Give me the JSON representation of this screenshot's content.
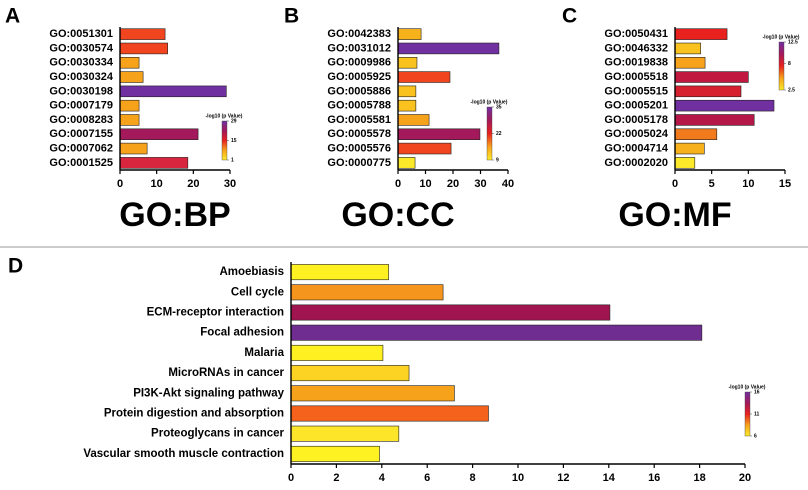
{
  "chart_data": [
    {
      "type": "barh",
      "label": "A",
      "title": "GO:BP",
      "categories": [
        "GO:0051301",
        "GO:0030574",
        "GO:0030334",
        "GO:0030324",
        "GO:0030198",
        "GO:0007179",
        "GO:0008283",
        "GO:0007155",
        "GO:0007062",
        "GO:0001525"
      ],
      "values": [
        12.3,
        13,
        5.2,
        6.3,
        29,
        5.2,
        5.2,
        21.3,
        7.4,
        18.5
      ],
      "colors": [
        "#f0451e",
        "#f0451e",
        "#f7a21b",
        "#f7a21b",
        "#7030a0",
        "#f7a21b",
        "#f7a21b",
        "#a3195b",
        "#f7a21b",
        "#d7263d"
      ],
      "xlim": [
        0,
        30
      ],
      "xticks": [
        0,
        10,
        20,
        30
      ],
      "colorbar": {
        "title": "-log10 (p Value)",
        "lim": [
          1,
          29
        ],
        "ticks": [
          29,
          15,
          1
        ],
        "colors": [
          "#fcea2a",
          "#f7a21b",
          "#e8211f",
          "#a3195b",
          "#7030a0"
        ]
      }
    },
    {
      "type": "barh",
      "label": "B",
      "title": "GO:CC",
      "categories": [
        "GO:0042383",
        "GO:0031012",
        "GO:0009986",
        "GO:0005925",
        "GO:0005886",
        "GO:0005788",
        "GO:0005581",
        "GO:0005578",
        "GO:0005576",
        "GO:0000775"
      ],
      "values": [
        8.4,
        36.7,
        6.9,
        18.9,
        6.5,
        6.5,
        11.3,
        29.8,
        19.3,
        6.2
      ],
      "colors": [
        "#f7b21b",
        "#7030a0",
        "#f9c21f",
        "#f0451e",
        "#f9c21f",
        "#f9c21f",
        "#f7a21b",
        "#a3195b",
        "#f0451e",
        "#fcea2a"
      ],
      "xlim": [
        0,
        40
      ],
      "xticks": [
        0,
        10,
        20,
        30,
        40
      ],
      "colorbar": {
        "title": "-log10 (p Value)",
        "lim": [
          9,
          35
        ],
        "ticks": [
          35,
          22,
          9
        ],
        "colors": [
          "#fcea2a",
          "#f7a21b",
          "#e8211f",
          "#a3195b",
          "#7030a0"
        ]
      }
    },
    {
      "type": "barh",
      "label": "C",
      "title": "GO:MF",
      "categories": [
        "GO:0050431",
        "GO:0046332",
        "GO:0019838",
        "GO:0005518",
        "GO:0005515",
        "GO:0005201",
        "GO:0005178",
        "GO:0005024",
        "GO:0004714",
        "GO:0002020"
      ],
      "values": [
        7.1,
        3.5,
        4.1,
        10,
        9,
        13.5,
        10.8,
        5.7,
        4,
        2.7
      ],
      "colors": [
        "#e8211f",
        "#f9c21f",
        "#f7a21b",
        "#c0183f",
        "#d7202f",
        "#7030a0",
        "#b51848",
        "#f07a1c",
        "#f7b21b",
        "#fcea2a"
      ],
      "xlim": [
        0,
        15
      ],
      "xticks": [
        0,
        5,
        10,
        15
      ],
      "colorbar": {
        "title": "-log10 (p Value)",
        "lim": [
          2.5,
          12.5
        ],
        "ticks": [
          12.5,
          8,
          2.5
        ],
        "colors": [
          "#fcea2a",
          "#f7a21b",
          "#e8211f",
          "#a3195b",
          "#7030a0"
        ]
      }
    },
    {
      "type": "barh",
      "label": "D",
      "categories": [
        "Amoebiasis",
        "Cell cycle",
        "ECM-receptor interaction",
        "Focal adhesion",
        "Malaria",
        "MicroRNAs in cancer",
        "PI3K-Akt signaling pathway",
        "Protein digestion and absorption",
        "Proteoglycans in cancer",
        "Vascular smooth muscle contraction"
      ],
      "values": [
        4.3,
        6.7,
        14.05,
        18.1,
        4.05,
        5.2,
        7.2,
        8.7,
        4.75,
        3.9
      ],
      "colors": [
        "#fff022",
        "#f5951d",
        "#a0144f",
        "#6f2c91",
        "#fff022",
        "#fcd322",
        "#f7a21b",
        "#f5621c",
        "#fde52a",
        "#fff222"
      ],
      "xlim": [
        0,
        20
      ],
      "xticks": [
        0,
        2,
        4,
        6,
        8,
        10,
        12,
        14,
        16,
        18,
        20
      ],
      "colorbar": {
        "title": "-log10 (p Value)",
        "lim": [
          6,
          16
        ],
        "ticks": [
          16,
          11,
          6
        ],
        "colors": [
          "#fcea2a",
          "#f7a21b",
          "#e8211f",
          "#a3195b",
          "#7030a0"
        ]
      }
    }
  ]
}
